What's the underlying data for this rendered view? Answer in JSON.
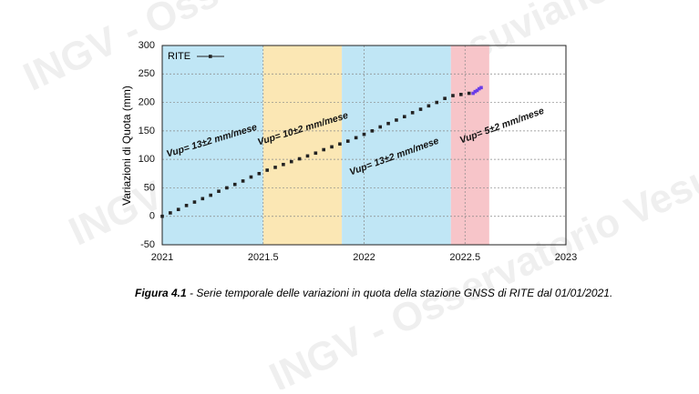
{
  "chart_data": {
    "type": "scatter",
    "ylabel": "Variazioni di Quota (mm)",
    "xlim": [
      2021,
      2023
    ],
    "xticks": [
      2021,
      2021.5,
      2022,
      2022.5,
      2023
    ],
    "ylim": [
      -50,
      300
    ],
    "yticks": [
      -50,
      0,
      50,
      100,
      150,
      200,
      250,
      300
    ],
    "grid": true,
    "legend": "top-left",
    "bands": [
      {
        "start": 2021,
        "end": 2021.5,
        "color": "#c0e6f5"
      },
      {
        "start": 2021.5,
        "end": 2021.89,
        "color": "#fbe7b4"
      },
      {
        "start": 2021.89,
        "end": 2022.43,
        "color": "#c0e6f5"
      },
      {
        "start": 2022.43,
        "end": 2022.62,
        "color": "#f7c5c9"
      }
    ],
    "annotations": [
      "Vup= 13±2 mm/mese",
      "Vup= 10±2 mm/mese",
      "Vup= 13±2 mm/mese",
      "Vup= 5±2 mm/mese"
    ],
    "series": [
      {
        "name": "RITE",
        "color": "#222222",
        "x": [
          2021.0,
          2021.04,
          2021.08,
          2021.12,
          2021.16,
          2021.2,
          2021.24,
          2021.28,
          2021.32,
          2021.36,
          2021.4,
          2021.44,
          2021.48,
          2021.52,
          2021.56,
          2021.6,
          2021.64,
          2021.68,
          2021.72,
          2021.76,
          2021.8,
          2021.84,
          2021.88,
          2021.92,
          2021.96,
          2022.0,
          2022.04,
          2022.08,
          2022.12,
          2022.16,
          2022.2,
          2022.24,
          2022.28,
          2022.32,
          2022.36,
          2022.4,
          2022.44,
          2022.48,
          2022.52
        ],
        "values": [
          0,
          6,
          12,
          19,
          25,
          31,
          37,
          44,
          50,
          56,
          62,
          69,
          75,
          81,
          86,
          91,
          96,
          101,
          106,
          111,
          117,
          122,
          127,
          132,
          138,
          144,
          150,
          157,
          163,
          169,
          175,
          182,
          188,
          194,
          200,
          207,
          212,
          214,
          216
        ]
      },
      {
        "color": "#6a3de8",
        "x": [
          2022.54,
          2022.55,
          2022.56,
          2022.57,
          2022.58
        ],
        "values": [
          216,
          219,
          221,
          224,
          226
        ]
      }
    ]
  },
  "caption": {
    "label": "Figura 4.1",
    "text": " - Serie temporale delle variazioni in quota della stazione GNSS di RITE dal 01/01/2021."
  },
  "watermark": "INGV - Osservatorio Vesuviano"
}
